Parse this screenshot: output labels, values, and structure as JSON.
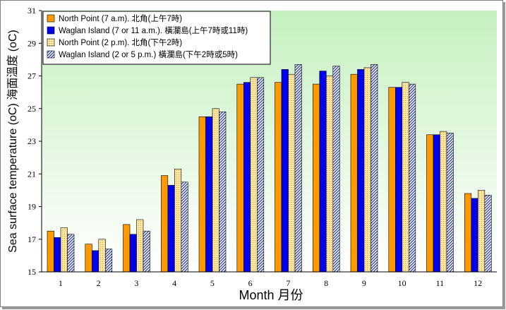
{
  "chart_data": {
    "type": "bar",
    "xlabel": "Month 月份",
    "ylabel": "Sea surface temperature (oC) 海面溫度 (oC)",
    "ylim": [
      15,
      31
    ],
    "yticks": [
      "15",
      "17",
      "19",
      "21",
      "23",
      "25",
      "27",
      "29",
      "31"
    ],
    "categories": [
      "1",
      "2",
      "3",
      "4",
      "5",
      "6",
      "7",
      "8",
      "9",
      "10",
      "11",
      "12"
    ],
    "grid": false,
    "legend_position": "top-left",
    "series": [
      {
        "name": "North Point (7 a.m). 北角(上午7時)",
        "color": "#ff9900",
        "pattern": "solid",
        "values": [
          17.5,
          16.7,
          17.9,
          20.9,
          24.5,
          26.5,
          26.6,
          26.5,
          27.1,
          26.3,
          23.4,
          19.8
        ]
      },
      {
        "name": "Waglan Island (7 or 11 a.m.). 橫瀾島(上午7時或11時)",
        "color": "#0000ee",
        "pattern": "solid",
        "values": [
          17.1,
          16.3,
          17.3,
          20.3,
          24.5,
          26.6,
          27.4,
          27.3,
          27.4,
          26.3,
          23.4,
          19.5
        ]
      },
      {
        "name": "North Point (2 p.m). 北角(下午2時)",
        "color": "#ffe6a0",
        "pattern": "dots",
        "values": [
          17.7,
          17.0,
          18.2,
          21.3,
          25.0,
          26.9,
          27.1,
          27.0,
          27.5,
          26.6,
          23.6,
          20.0
        ]
      },
      {
        "name": "Waglan Island (2 or 5 p.m.) 橫瀾島(下午2時或5時)",
        "color": "#3344aa",
        "pattern": "diagonal",
        "values": [
          17.3,
          16.4,
          17.5,
          20.5,
          24.8,
          26.9,
          27.7,
          27.6,
          27.7,
          26.5,
          23.5,
          19.7
        ]
      }
    ]
  }
}
